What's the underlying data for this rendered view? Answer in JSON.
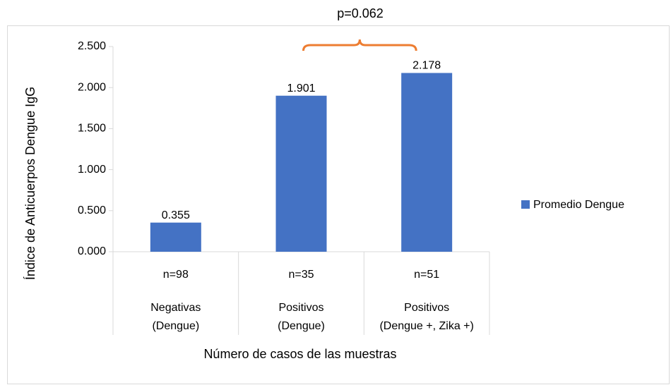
{
  "chart_data": {
    "type": "bar",
    "annotation": "p=0.062",
    "y_label": "Índice de Anticuerpos Dengue IgG",
    "x_label": "Número de casos de las muestras",
    "categories": [
      "n=98",
      "n=35",
      "n=51"
    ],
    "groups": [
      [
        "Negativas",
        "(Dengue)"
      ],
      [
        "Positivos",
        "(Dengue)"
      ],
      [
        "Positivos",
        "(Dengue +, Zika +)"
      ]
    ],
    "series": [
      {
        "name": "Promedio Dengue",
        "color": "#4472c4",
        "values": [
          0.355,
          1.901,
          2.178
        ]
      }
    ],
    "ylim": [
      0,
      2.5
    ],
    "yticks": [
      {
        "value": 0,
        "label": "0.000"
      },
      {
        "value": 0.5,
        "label": "0.500"
      },
      {
        "value": 1,
        "label": "1.000"
      },
      {
        "value": 1.5,
        "label": "1.500"
      },
      {
        "value": 2,
        "label": "2.000"
      },
      {
        "value": 2.5,
        "label": "2.500"
      }
    ],
    "annotation_color": "#ed7d31",
    "grid": false,
    "legend": "right"
  }
}
